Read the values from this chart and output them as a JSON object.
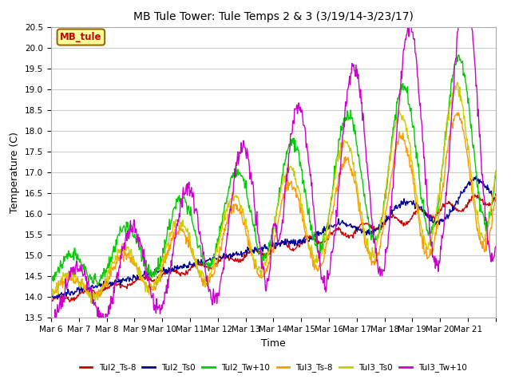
{
  "title": "MB Tule Tower: Tule Temps 2 & 3 (3/19/14-3/23/17)",
  "xlabel": "Time",
  "ylabel": "Temperature (C)",
  "ylim": [
    13.5,
    20.5
  ],
  "yticks": [
    13.5,
    14.0,
    14.5,
    15.0,
    15.5,
    16.0,
    16.5,
    17.0,
    17.5,
    18.0,
    18.5,
    19.0,
    19.5,
    20.0,
    20.5
  ],
  "xtick_labels": [
    "Mar 6",
    "Mar 7",
    "Mar 8",
    "Mar 9",
    "Mar 10",
    "Mar 11",
    "Mar 12",
    "Mar 13",
    "Mar 14",
    "Mar 15",
    "Mar 16",
    "Mar 17",
    "Mar 18",
    "Mar 19",
    "Mar 20",
    "Mar 21"
  ],
  "series_order": [
    "Tul2_Ts-8",
    "Tul2_Ts0",
    "Tul2_Tw+10",
    "Tul3_Ts-8",
    "Tul3_Ts0",
    "Tul3_Tw+10"
  ],
  "series": {
    "Tul2_Ts-8": {
      "color": "#cc0000",
      "lw": 1.0
    },
    "Tul2_Ts0": {
      "color": "#000099",
      "lw": 1.0
    },
    "Tul2_Tw+10": {
      "color": "#00cc00",
      "lw": 1.0
    },
    "Tul3_Ts-8": {
      "color": "#ff9900",
      "lw": 1.0
    },
    "Tul3_Ts0": {
      "color": "#cccc00",
      "lw": 1.0
    },
    "Tul3_Tw+10": {
      "color": "#cc00cc",
      "lw": 1.0
    }
  },
  "annotation_text": "MB_tule",
  "annotation_color": "#cc0000",
  "annotation_bbox_facecolor": "#ffff99",
  "annotation_bbox_edgecolor": "#996600",
  "background_color": "#ffffff",
  "grid_color": "#cccccc",
  "figsize": [
    6.4,
    4.8
  ],
  "dpi": 100
}
